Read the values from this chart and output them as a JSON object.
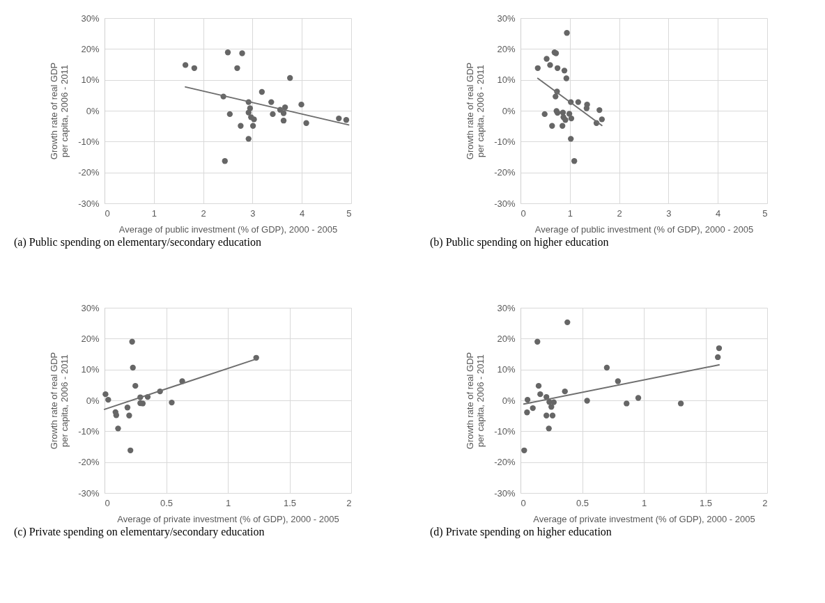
{
  "chart_data": [
    {
      "type": "scatter",
      "title": "(a)  Public spending on elementary/secondary education",
      "xlabel": "Average of public investment (% of GDP),  2000 - 2005",
      "ylabel": "Growth rate of real GDP per capita, 2006 - 2011",
      "xlim": [
        0,
        5
      ],
      "xticks": [
        0,
        1,
        2,
        3,
        4,
        5
      ],
      "ylim": [
        -30,
        30
      ],
      "yticks": [
        {
          "value": -30,
          "label": "-30%"
        },
        {
          "value": -20,
          "label": "-20%"
        },
        {
          "value": -10,
          "label": "-10%"
        },
        {
          "value": 0,
          "label": "0%"
        },
        {
          "value": 10,
          "label": "10%"
        },
        {
          "value": 20,
          "label": "20%"
        },
        {
          "value": 30,
          "label": "30%"
        }
      ],
      "grid": true,
      "series": [
        {
          "marker": "circle",
          "color": "#666666",
          "x": [
            1.64,
            1.82,
            2.5,
            2.79,
            2.69,
            3.76,
            3.19,
            2.41,
            2.92,
            3.38,
            3.99,
            3.66,
            2.95,
            3.56,
            2.54,
            2.92,
            2.97,
            3.03,
            3.41,
            3.63,
            3.63,
            2.76,
            3.01,
            4.09,
            2.92,
            2.44,
            4.75,
            4.9
          ],
          "values": [
            14.8,
            13.8,
            18.9,
            18.6,
            13.8,
            10.6,
            6.1,
            4.6,
            2.8,
            2.8,
            2,
            1.1,
            0.8,
            0.3,
            -1.1,
            -0.6,
            -2.1,
            -2.8,
            -1.1,
            -0.8,
            -3.2,
            -4.9,
            -4.9,
            -4,
            -9.1,
            -16.3,
            -2.5,
            -3
          ]
        },
        {
          "type": "line",
          "color": "#6e6e6e",
          "x": [
            1.64,
            4.95
          ],
          "values": [
            7.7,
            -4.6
          ]
        }
      ]
    },
    {
      "type": "scatter",
      "title": "(b)  Public spending on higher education",
      "xlabel": "Average of public investment (% of GDP),  2000 - 2005",
      "ylabel": "Growth rate of real GDP per capita, 2006 - 2011",
      "xlim": [
        0,
        5
      ],
      "xticks": [
        0,
        1,
        2,
        3,
        4,
        5
      ],
      "ylim": [
        -30,
        30
      ],
      "yticks": [
        {
          "value": -30,
          "label": "-30%"
        },
        {
          "value": -20,
          "label": "-20%"
        },
        {
          "value": -10,
          "label": "-10%"
        },
        {
          "value": 0,
          "label": "0%"
        },
        {
          "value": 10,
          "label": "10%"
        },
        {
          "value": 20,
          "label": "20%"
        },
        {
          "value": 30,
          "label": "30%"
        }
      ],
      "grid": true,
      "series": [
        {
          "marker": "circle",
          "color": "#666666",
          "x": [
            0.94,
            0.69,
            0.72,
            0.53,
            0.35,
            0.6,
            0.75,
            0.89,
            0.93,
            0.74,
            0.71,
            1.02,
            1.17,
            1.35,
            1.34,
            1.6,
            0.49,
            0.73,
            0.75,
            0.86,
            0.87,
            0.91,
            0.99,
            1.03,
            1.65,
            1.54,
            0.64,
            0.85,
            1.02,
            1.09
          ],
          "values": [
            25.2,
            18.9,
            18.6,
            16.8,
            13.8,
            14.8,
            13.8,
            13,
            10.5,
            6.2,
            4.6,
            2.8,
            2.8,
            2,
            0.8,
            0.2,
            -1.1,
            -0.1,
            -0.7,
            -0.6,
            -2.1,
            -3,
            -1,
            -2.5,
            -2.8,
            -4,
            -4.9,
            -4.9,
            -9.1,
            -16.3
          ]
        },
        {
          "type": "line",
          "color": "#6e6e6e",
          "x": [
            0.35,
            1.65
          ],
          "values": [
            10.5,
            -4.8
          ]
        }
      ]
    },
    {
      "type": "scatter",
      "title": "(c)  Private spending on elementary/secondary education",
      "xlabel": "Average of private investment (% of GDP),  2000 - 2005",
      "ylabel": "Growth rate of real GDP per capita, 2006 - 2011",
      "xlim": [
        0,
        2
      ],
      "xticks": [
        0,
        0.5,
        1,
        1.5,
        2
      ],
      "ylim": [
        -30,
        30
      ],
      "yticks": [
        {
          "value": -30,
          "label": "-30%"
        },
        {
          "value": -20,
          "label": "-20%"
        },
        {
          "value": -10,
          "label": "-10%"
        },
        {
          "value": 0,
          "label": "0%"
        },
        {
          "value": 10,
          "label": "10%"
        },
        {
          "value": 20,
          "label": "20%"
        },
        {
          "value": 30,
          "label": "30%"
        }
      ],
      "grid": true,
      "series": [
        {
          "marker": "circle",
          "color": "#666666",
          "x": [
            0.224,
            0.23,
            0.25,
            0.008,
            0.03,
            0.29,
            0.35,
            0.45,
            0.63,
            1.23,
            0.29,
            0.31,
            0.545,
            0.186,
            0.089,
            0.095,
            0.2,
            0.11,
            0.21
          ],
          "values": [
            19,
            10.6,
            4.7,
            2,
            0.2,
            1,
            1.1,
            2.9,
            6.2,
            13.8,
            -0.9,
            -1,
            -0.7,
            -2.3,
            -3.8,
            -4.8,
            -4.9,
            -9.1,
            -16.2
          ]
        },
        {
          "type": "line",
          "color": "#6e6e6e",
          "x": [
            0,
            1.23
          ],
          "values": [
            -2.9,
            13.4
          ]
        }
      ]
    },
    {
      "type": "scatter",
      "title": "(d)  Private spending on higher education",
      "xlabel": "Average of private investment (% of GDP),  2000 - 2005",
      "ylabel": "Growth rate of real GDP per capita, 2006 - 2011",
      "xlim": [
        0,
        2
      ],
      "xticks": [
        0,
        0.5,
        1,
        1.5,
        2
      ],
      "ylim": [
        -30,
        30
      ],
      "yticks": [
        {
          "value": -30,
          "label": "-30%"
        },
        {
          "value": -20,
          "label": "-20%"
        },
        {
          "value": -10,
          "label": "-10%"
        },
        {
          "value": 0,
          "label": "0%"
        },
        {
          "value": 10,
          "label": "10%"
        },
        {
          "value": 20,
          "label": "20%"
        },
        {
          "value": 30,
          "label": "30%"
        }
      ],
      "grid": true,
      "series": [
        {
          "marker": "circle",
          "color": "#666666",
          "x": [
            0.38,
            0.137,
            1.61,
            1.6,
            0.7,
            0.79,
            0.147,
            0.16,
            0.36,
            0.057,
            0.21,
            0.54,
            0.955,
            0.86,
            1.3,
            0.234,
            0.27,
            0.25,
            0.1,
            0.053,
            0.21,
            0.26,
            0.23,
            0.03
          ],
          "values": [
            25.3,
            19,
            16.9,
            14,
            10.6,
            6.2,
            4.7,
            2,
            2.9,
            0.2,
            1.1,
            -0.1,
            0.8,
            -1,
            -1,
            -0.5,
            -0.6,
            -2.1,
            -2.5,
            -3.9,
            -4.9,
            -4.9,
            -9.1,
            -16.2
          ]
        },
        {
          "type": "line",
          "color": "#6e6e6e",
          "x": [
            0.027,
            1.61
          ],
          "values": [
            -1.2,
            11.5
          ]
        }
      ]
    }
  ]
}
